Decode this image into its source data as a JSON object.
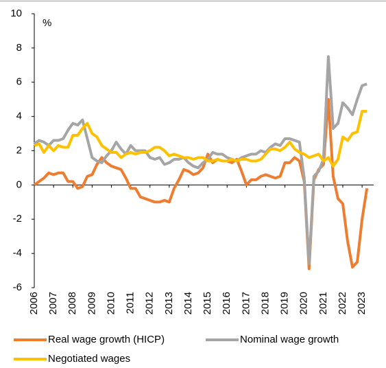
{
  "chart_data": {
    "type": "line",
    "y_label": "%",
    "x": [
      2006,
      2006.25,
      2006.5,
      2006.75,
      2007,
      2007.25,
      2007.5,
      2007.75,
      2008,
      2008.25,
      2008.5,
      2008.75,
      2009,
      2009.25,
      2009.5,
      2009.75,
      2010,
      2010.25,
      2010.5,
      2010.75,
      2011,
      2011.25,
      2011.5,
      2011.75,
      2012,
      2012.25,
      2012.5,
      2012.75,
      2013,
      2013.25,
      2013.5,
      2013.75,
      2014,
      2014.25,
      2014.5,
      2014.75,
      2015,
      2015.25,
      2015.5,
      2015.75,
      2016,
      2016.25,
      2016.5,
      2016.75,
      2017,
      2017.25,
      2017.5,
      2017.75,
      2018,
      2018.25,
      2018.5,
      2018.75,
      2019,
      2019.25,
      2019.5,
      2019.75,
      2020,
      2020.25,
      2020.5,
      2020.75,
      2021,
      2021.25,
      2021.5,
      2021.75,
      2022,
      2022.25,
      2022.5,
      2022.75,
      2023,
      2023.25
    ],
    "series": [
      {
        "name": "Real wage growth (HICP)",
        "color": "#ed7d31",
        "values": [
          0.0,
          0.2,
          0.4,
          0.7,
          0.6,
          0.7,
          0.7,
          0.2,
          0.2,
          -0.2,
          -0.1,
          0.5,
          0.6,
          1.2,
          1.6,
          1.3,
          1.1,
          1.0,
          0.9,
          0.4,
          -0.2,
          -0.2,
          -0.7,
          -0.8,
          -0.9,
          -1.0,
          -1.0,
          -0.9,
          -1.0,
          -0.2,
          0.3,
          0.9,
          0.8,
          0.6,
          0.7,
          1.0,
          1.8,
          1.3,
          1.5,
          1.4,
          1.4,
          1.3,
          1.5,
          0.8,
          0.0,
          0.3,
          0.3,
          0.5,
          0.6,
          0.5,
          0.4,
          0.5,
          1.3,
          1.3,
          1.6,
          1.4,
          0.2,
          -4.9,
          0.3,
          0.9,
          1.2,
          5.0,
          0.5,
          -0.8,
          -1.1,
          -3.3,
          -4.8,
          -4.5,
          -2.0,
          -0.2
        ]
      },
      {
        "name": "Nominal wage growth",
        "color": "#a5a5a5",
        "values": [
          2.4,
          2.6,
          2.5,
          2.3,
          2.6,
          2.6,
          2.7,
          3.2,
          3.6,
          3.5,
          3.8,
          2.7,
          1.6,
          1.4,
          1.3,
          1.7,
          2.0,
          2.5,
          2.1,
          1.8,
          2.3,
          2.0,
          2.0,
          2.0,
          1.6,
          1.5,
          1.6,
          1.2,
          1.3,
          1.5,
          1.5,
          1.6,
          1.3,
          1.1,
          1.0,
          1.3,
          1.5,
          1.9,
          1.8,
          1.8,
          1.6,
          1.5,
          1.4,
          1.6,
          1.7,
          1.8,
          1.8,
          2.0,
          1.9,
          2.2,
          2.4,
          2.3,
          2.7,
          2.7,
          2.6,
          2.5,
          0.4,
          -4.6,
          0.5,
          0.8,
          1.5,
          7.5,
          3.3,
          3.6,
          4.8,
          4.5,
          4.1,
          5.0,
          5.8,
          5.9
        ]
      },
      {
        "name": "Negotiated wages",
        "color": "#ffc000",
        "values": [
          2.3,
          2.4,
          1.9,
          2.3,
          2.0,
          2.3,
          2.2,
          2.2,
          2.9,
          2.9,
          3.3,
          3.6,
          3.0,
          2.8,
          2.3,
          2.1,
          1.9,
          1.9,
          1.6,
          1.8,
          1.9,
          1.8,
          1.9,
          1.9,
          2.0,
          2.2,
          2.2,
          2.0,
          1.7,
          1.8,
          1.7,
          1.6,
          1.6,
          1.5,
          1.6,
          1.6,
          1.4,
          1.4,
          1.5,
          1.4,
          1.4,
          1.5,
          1.4,
          1.5,
          1.5,
          1.4,
          1.4,
          1.5,
          1.8,
          2.1,
          2.1,
          2.0,
          2.2,
          2.5,
          2.1,
          1.9,
          1.8,
          1.6,
          1.7,
          1.8,
          1.4,
          1.6,
          1.1,
          1.5,
          2.8,
          2.6,
          3.0,
          3.1,
          4.3,
          4.3
        ]
      }
    ],
    "xlim": [
      2006,
      2023.6
    ],
    "xticks": [
      2006,
      2007,
      2008,
      2009,
      2010,
      2011,
      2012,
      2013,
      2014,
      2015,
      2016,
      2017,
      2018,
      2019,
      2020,
      2021,
      2022,
      2023
    ],
    "ylim": [
      -6,
      10
    ],
    "yticks": [
      -6,
      -4,
      -2,
      0,
      2,
      4,
      6,
      8,
      10
    ],
    "grid": false
  }
}
